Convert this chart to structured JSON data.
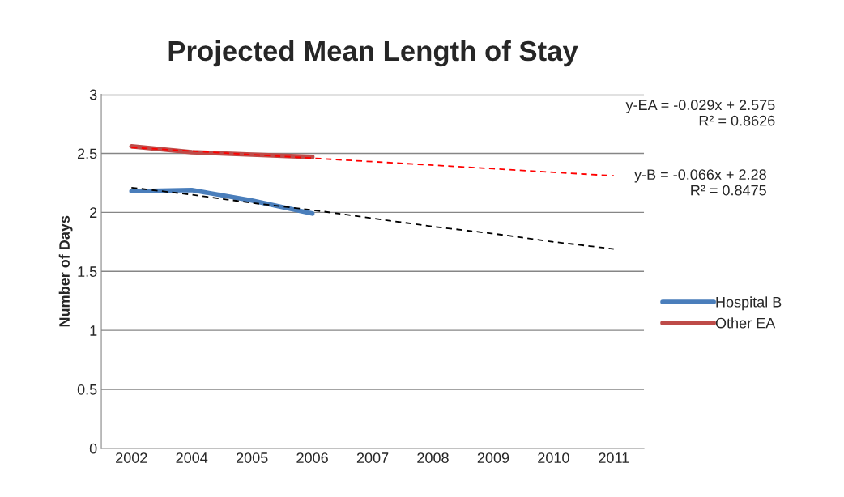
{
  "chart_data": {
    "type": "line",
    "title": "Projected Mean Length of Stay",
    "ylabel": "Number of Days",
    "categories": [
      "2002",
      "2004",
      "2005",
      "2006",
      "2007",
      "2008",
      "2009",
      "2010",
      "2011"
    ],
    "series": [
      {
        "name": "Hospital B",
        "color": "#4a7ebb",
        "line_style": "solid",
        "values": [
          2.18,
          2.19,
          2.1,
          1.99,
          null,
          null,
          null,
          null,
          null
        ]
      },
      {
        "name": "Other EA",
        "color": "#be4b48",
        "line_style": "solid",
        "values": [
          2.56,
          2.51,
          2.49,
          2.47,
          null,
          null,
          null,
          null,
          null
        ]
      },
      {
        "type": "line",
        "color": "#ff0000",
        "line_style": "dashed",
        "values": [
          2.55,
          2.52,
          2.49,
          2.46,
          2.43,
          2.4,
          2.37,
          2.34,
          2.31
        ]
      },
      {
        "type": "line",
        "color": "#000000",
        "line_style": "dashed",
        "values": [
          2.21,
          2.15,
          2.08,
          2.02,
          1.95,
          1.88,
          1.82,
          1.75,
          1.69
        ]
      }
    ],
    "ylim": [
      0,
      3
    ],
    "yticks": [
      0,
      0.5,
      1,
      1.5,
      2,
      2.5,
      3
    ],
    "grid": "y",
    "legend": "right",
    "marker": "none",
    "annotations": [
      "y-EA = -0.029x + 2.575\nR² = 0.8626",
      "y-B = -0.066x + 2.28\nR² = 0.8475"
    ]
  }
}
